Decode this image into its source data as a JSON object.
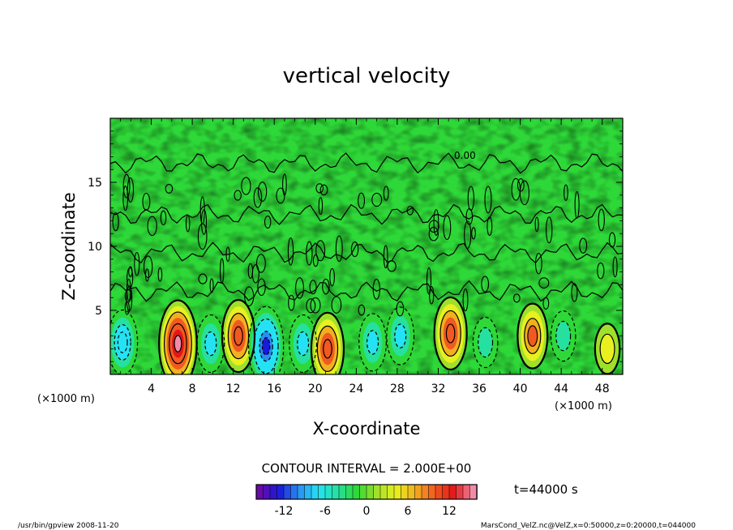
{
  "chart_data": {
    "type": "heatmap",
    "title": "vertical velocity",
    "xlabel": "X-coordinate",
    "ylabel": "Z-coordinate",
    "x_unit_left": "(×1000 m)",
    "x_unit_right": "(×1000 m)",
    "xlim": [
      0,
      50
    ],
    "ylim": [
      0,
      20
    ],
    "x_ticks": [
      4,
      8,
      12,
      16,
      20,
      24,
      28,
      32,
      36,
      40,
      44,
      48
    ],
    "y_ticks": [
      5,
      10,
      15
    ],
    "contour_interval_text": "CONTOUR INTERVAL = 2.000E+00",
    "contour_label": "0.00",
    "time_label": "t=44000 s",
    "colorbar": {
      "range": [
        -16,
        16
      ],
      "ticks": [
        -12,
        -6,
        0,
        6,
        12
      ],
      "colors": [
        "#6a0aa8",
        "#1a1ad8",
        "#2a8ef0",
        "#24e2f4",
        "#26e0a0",
        "#2ed838",
        "#9fe02a",
        "#e8f020",
        "#f0b020",
        "#f05a20",
        "#e01818",
        "#f08ca8"
      ]
    },
    "features": [
      {
        "x": 1.2,
        "z": 2.5,
        "value": -8
      },
      {
        "x": 6.6,
        "z": 2.4,
        "value": 14
      },
      {
        "x": 9.8,
        "z": 2.4,
        "value": -6
      },
      {
        "x": 12.5,
        "z": 3.0,
        "value": 10
      },
      {
        "x": 15.2,
        "z": 2.2,
        "value": -12
      },
      {
        "x": 18.8,
        "z": 2.4,
        "value": -6
      },
      {
        "x": 21.2,
        "z": 2.0,
        "value": 10
      },
      {
        "x": 25.6,
        "z": 2.5,
        "value": -6
      },
      {
        "x": 28.3,
        "z": 3.0,
        "value": -6
      },
      {
        "x": 33.2,
        "z": 3.2,
        "value": 10
      },
      {
        "x": 36.6,
        "z": 2.5,
        "value": -4
      },
      {
        "x": 41.2,
        "z": 3.0,
        "value": 8
      },
      {
        "x": 44.2,
        "z": 3.0,
        "value": -4
      },
      {
        "x": 48.5,
        "z": 2.0,
        "value": 4
      }
    ]
  },
  "footer": {
    "left": "/usr/bin/gpview   2008-11-20",
    "right": "MarsCond_VelZ.nc@VelZ,x=0:50000,z=0:20000,t=044000"
  }
}
